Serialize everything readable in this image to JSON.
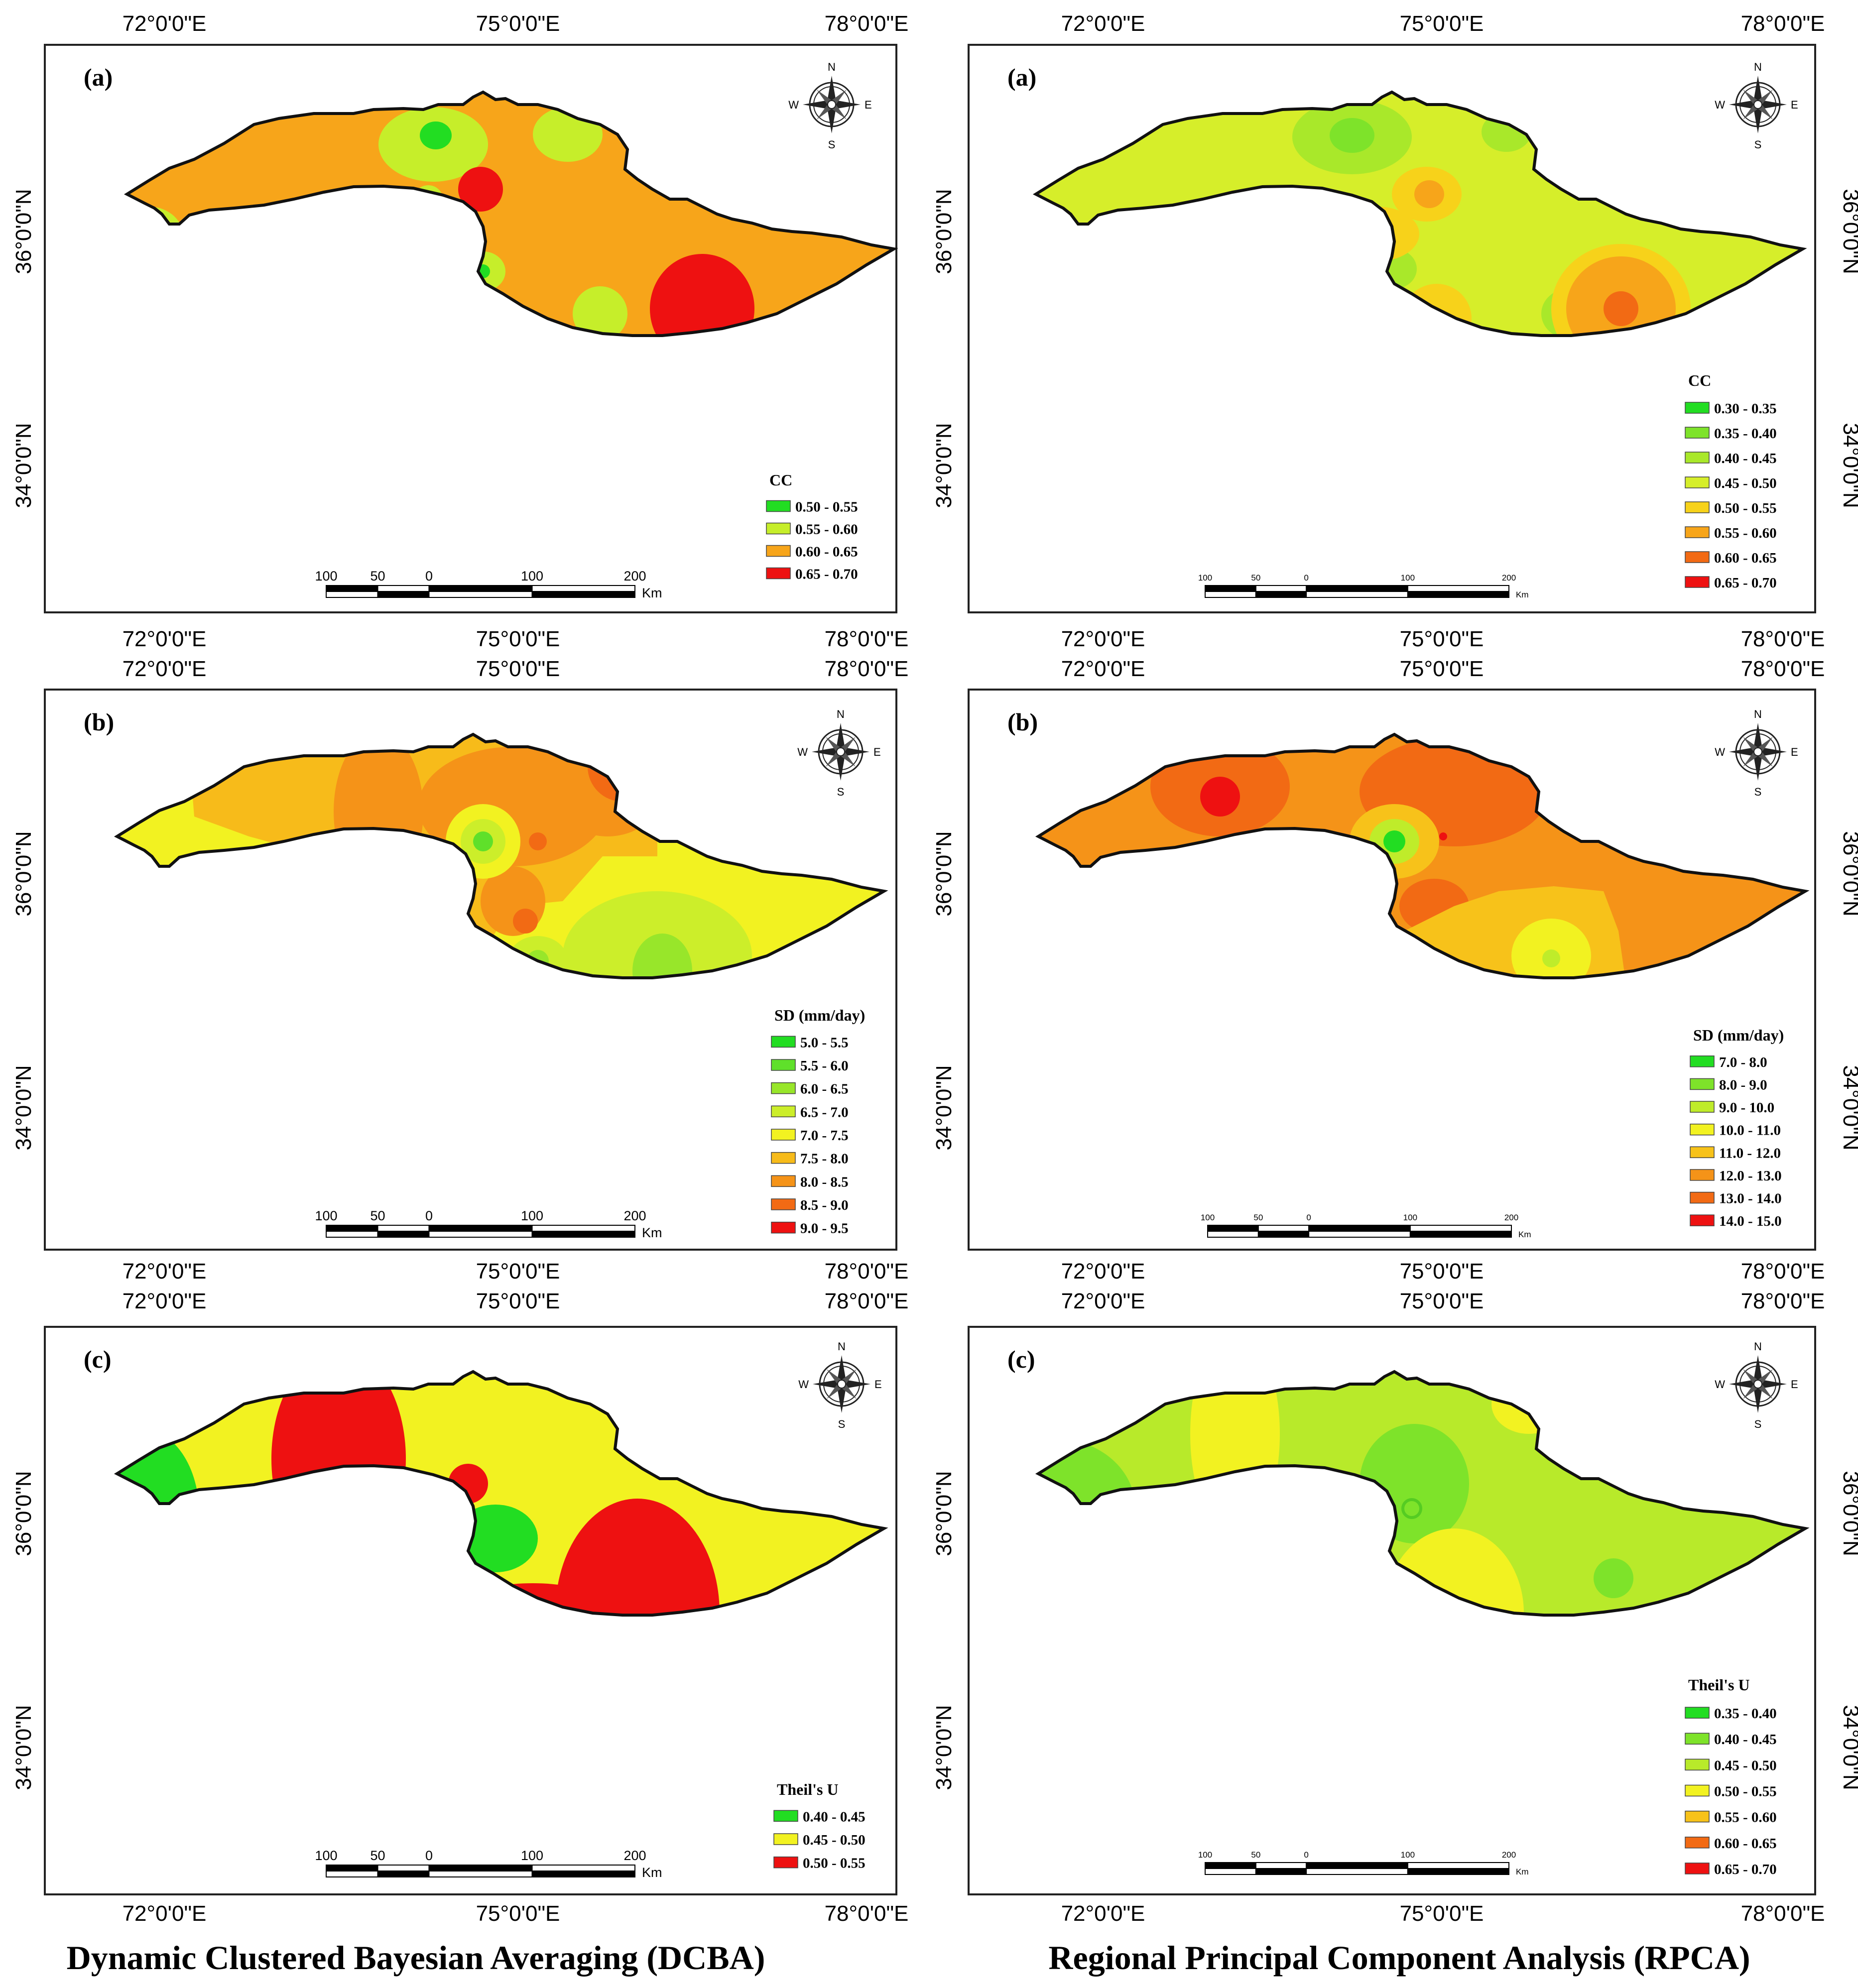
{
  "figure": {
    "left_caption": "Dynamic Clustered Bayesian Averaging (DCBA)",
    "right_caption": "Regional Principal Component Analysis (RPCA)",
    "axis_labels": {
      "lon_left": "72°0'0\"E",
      "lon_mid": "75°0'0\"E",
      "lon_right": "78°0'0\"E",
      "lat_upper": "36°0'0\"N",
      "lat_lower": "34°0'0\"N"
    },
    "compass": {
      "n": "N",
      "s": "S",
      "e": "E",
      "w": "W"
    },
    "scalebar": {
      "ticks": [
        "100",
        "50",
        "0",
        "100",
        "200"
      ],
      "unit": "Km"
    },
    "colors": {
      "green": "#22dd22",
      "light_green": "#7ee32a",
      "yellow_green": "#c6ee2a",
      "yellow": "#f2f221",
      "light_orange": "#f7c21a",
      "orange": "#f7a51a",
      "dark_orange": "#f26a14",
      "red": "#ee1111",
      "outline": "#111111"
    }
  },
  "panels": [
    {
      "id": "dcba-cc",
      "label": "(a)",
      "legend_title": "CC",
      "legend": [
        {
          "range": "0.50 - 0.55",
          "color": "#22dd22"
        },
        {
          "range": "0.55 - 0.60",
          "color": "#c6ee2a"
        },
        {
          "range": "0.60 - 0.65",
          "color": "#f7a51a"
        },
        {
          "range": "0.65 - 0.70",
          "color": "#ee1111"
        }
      ]
    },
    {
      "id": "rpca-cc",
      "label": "(a)",
      "legend_title": "CC",
      "legend": [
        {
          "range": "0.30 - 0.35",
          "color": "#22dd22"
        },
        {
          "range": "0.35 - 0.40",
          "color": "#7ee32a"
        },
        {
          "range": "0.40 - 0.45",
          "color": "#a9e82a"
        },
        {
          "range": "0.45 - 0.50",
          "color": "#d6ee2a"
        },
        {
          "range": "0.50 - 0.55",
          "color": "#f7d21a"
        },
        {
          "range": "0.55 - 0.60",
          "color": "#f7a51a"
        },
        {
          "range": "0.60 - 0.65",
          "color": "#f26a14"
        },
        {
          "range": "0.65 - 0.70",
          "color": "#ee1111"
        }
      ]
    },
    {
      "id": "dcba-sd",
      "label": "(b)",
      "legend_title": "SD (mm/day)",
      "legend": [
        {
          "range": "5.0 - 5.5",
          "color": "#22dd22"
        },
        {
          "range": "5.5 - 6.0",
          "color": "#5fe02a"
        },
        {
          "range": "6.0 - 6.5",
          "color": "#98e62a"
        },
        {
          "range": "6.5 - 7.0",
          "color": "#ccee2a"
        },
        {
          "range": "7.0 - 7.5",
          "color": "#f2f221"
        },
        {
          "range": "7.5 - 8.0",
          "color": "#f7bb1a"
        },
        {
          "range": "8.0 - 8.5",
          "color": "#f59318"
        },
        {
          "range": "8.5 - 9.0",
          "color": "#f26a14"
        },
        {
          "range": "9.0 - 9.5",
          "color": "#ee1111"
        }
      ]
    },
    {
      "id": "rpca-sd",
      "label": "(b)",
      "legend_title": "SD (mm/day)",
      "legend": [
        {
          "range": "7.0 - 8.0",
          "color": "#22dd22"
        },
        {
          "range": "8.0 - 9.0",
          "color": "#7ee32a"
        },
        {
          "range": "9.0 - 10.0",
          "color": "#bfec2a"
        },
        {
          "range": "10.0 - 11.0",
          "color": "#f2f221"
        },
        {
          "range": "11.0 - 12.0",
          "color": "#f7c21a"
        },
        {
          "range": "12.0 - 13.0",
          "color": "#f59318"
        },
        {
          "range": "13.0 - 14.0",
          "color": "#f26a14"
        },
        {
          "range": "14.0 - 15.0",
          "color": "#ee1111"
        }
      ]
    },
    {
      "id": "dcba-theil",
      "label": "(c)",
      "legend_title": "Theil's U",
      "legend": [
        {
          "range": "0.40 - 0.45",
          "color": "#22dd22"
        },
        {
          "range": "0.45 - 0.50",
          "color": "#f2f221"
        },
        {
          "range": "0.50 - 0.55",
          "color": "#ee1111"
        }
      ]
    },
    {
      "id": "rpca-theil",
      "label": "(c)",
      "legend_title": "Theil's U",
      "legend": [
        {
          "range": "0.35 - 0.40",
          "color": "#22dd22"
        },
        {
          "range": "0.40 - 0.45",
          "color": "#7ee32a"
        },
        {
          "range": "0.45 - 0.50",
          "color": "#b8ea2a"
        },
        {
          "range": "0.50 - 0.55",
          "color": "#f2f221"
        },
        {
          "range": "0.55 - 0.60",
          "color": "#f7c21a"
        },
        {
          "range": "0.60 - 0.65",
          "color": "#f26a14"
        },
        {
          "range": "0.65 - 0.70",
          "color": "#ee1111"
        }
      ]
    }
  ]
}
